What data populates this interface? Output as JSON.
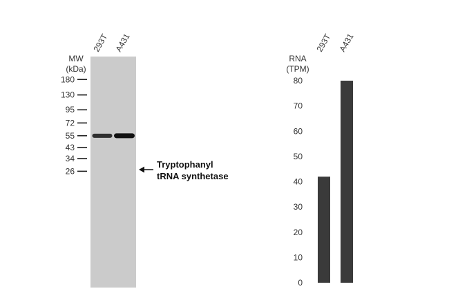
{
  "western_blot": {
    "mw_label_line1": "MW",
    "mw_label_line2": "(kDa)",
    "lanes": [
      "293T",
      "A431"
    ],
    "mw_markers": [
      180,
      130,
      95,
      72,
      55,
      43,
      34,
      26
    ],
    "band_kda": 55,
    "band_intensity": [
      0.75,
      1.0
    ],
    "annotation_line1": "Tryptophanyl",
    "annotation_line2": "tRNA synthetase"
  },
  "chart_data": {
    "type": "bar",
    "categories": [
      "293T",
      "A431"
    ],
    "values": [
      42,
      80
    ],
    "ylabel_line1": "RNA",
    "ylabel_line2": "(TPM)",
    "ylim": [
      0,
      80
    ],
    "yticks": [
      0,
      10,
      20,
      30,
      40,
      50,
      60,
      70,
      80
    ],
    "bar_color": "#3a3a3a",
    "grid": false
  }
}
